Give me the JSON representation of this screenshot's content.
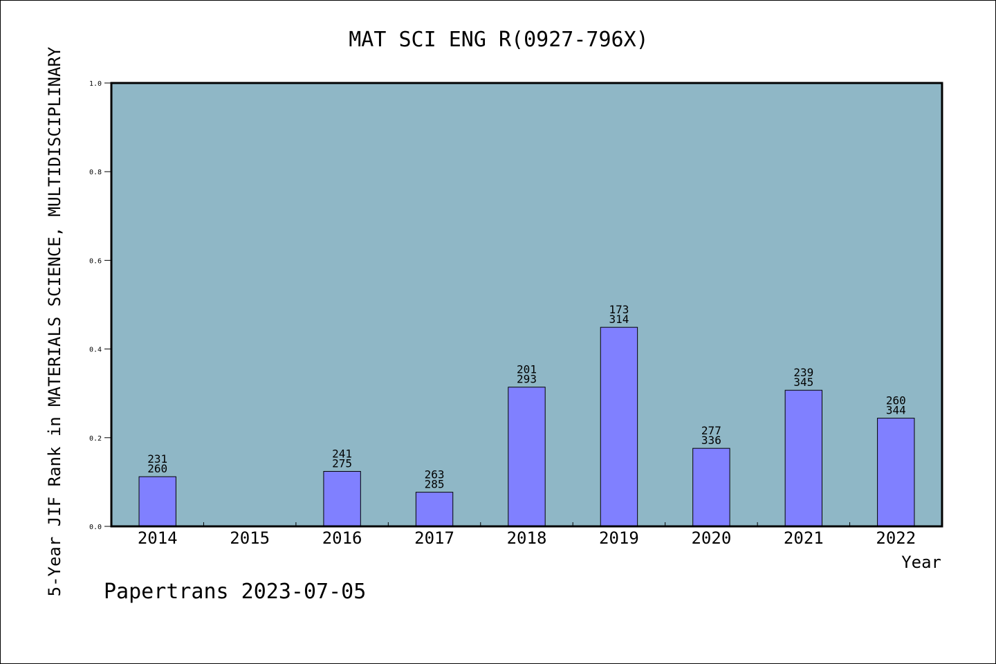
{
  "chart_data": {
    "type": "bar",
    "title": "MAT SCI ENG R(0927-796X)",
    "xlabel": "Year",
    "ylabel": "5-Year JIF Rank in MATERIALS SCIENCE, MULTIDISCIPLINARY",
    "ylim": [
      0,
      1.0
    ],
    "yticks": [
      "0.0",
      "0.2",
      "0.4",
      "0.6",
      "0.8",
      "1.0"
    ],
    "categories": [
      "2014",
      "2015",
      "2016",
      "2017",
      "2018",
      "2019",
      "2020",
      "2021",
      "2022"
    ],
    "values": [
      0.112,
      null,
      0.124,
      0.077,
      0.314,
      0.449,
      0.176,
      0.307,
      0.244
    ],
    "ranks": [
      "231",
      null,
      "241",
      "263",
      "201",
      "173",
      "277",
      "239",
      "260"
    ],
    "totals": [
      "260",
      null,
      "275",
      "285",
      "293",
      "314",
      "336",
      "345",
      "344"
    ],
    "grid": false,
    "legend": "none",
    "colors": {
      "plot_background": "#8fb7c6",
      "bar_fill": "#8080ff",
      "bar_stroke": "#000000",
      "axis": "#000000"
    }
  },
  "footer": "Papertrans 2023-07-05"
}
